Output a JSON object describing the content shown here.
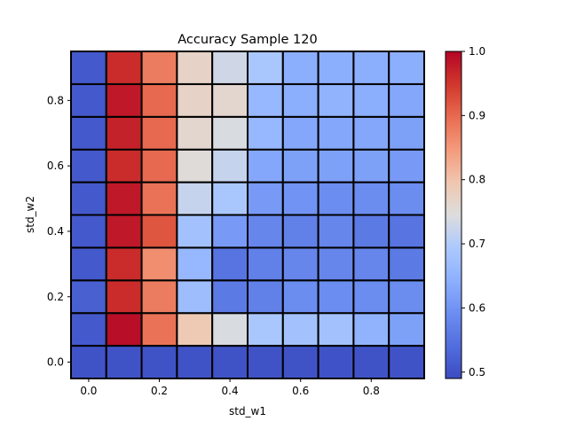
{
  "chart_data": {
    "type": "heatmap",
    "title": "Accuracy Sample 120",
    "xlabel": "std_w1",
    "ylabel": "std_w2",
    "x_values": [
      0.0,
      0.1,
      0.2,
      0.3,
      0.4,
      0.5,
      0.6,
      0.7,
      0.8,
      0.9
    ],
    "y_values": [
      0.0,
      0.1,
      0.2,
      0.3,
      0.4,
      0.5,
      0.6,
      0.7,
      0.8,
      0.9
    ],
    "xlim": [
      -0.05,
      0.95
    ],
    "ylim": [
      -0.05,
      0.95
    ],
    "x_ticks": [
      0.0,
      0.2,
      0.4,
      0.6,
      0.8
    ],
    "x_tick_labels": [
      "0.0",
      "0.2",
      "0.4",
      "0.6",
      "0.8"
    ],
    "y_ticks": [
      0.0,
      0.2,
      0.4,
      0.6,
      0.8
    ],
    "y_tick_labels": [
      "0.0",
      "0.2",
      "0.4",
      "0.6",
      "0.8"
    ],
    "colormap": "coolwarm",
    "colorbar": {
      "min": 0.49,
      "max": 1.0,
      "ticks": [
        0.5,
        0.6,
        0.7,
        0.8,
        0.9,
        1.0
      ],
      "tick_labels": [
        "0.5",
        "0.6",
        "0.7",
        "0.8",
        "0.9",
        "1.0"
      ]
    },
    "cell_edge_color": "#000000",
    "values": [
      [
        0.5,
        0.5,
        0.5,
        0.5,
        0.5,
        0.5,
        0.5,
        0.5,
        0.5,
        0.5
      ],
      [
        0.51,
        0.99,
        0.89,
        0.79,
        0.74,
        0.69,
        0.68,
        0.68,
        0.65,
        0.62
      ],
      [
        0.52,
        0.96,
        0.88,
        0.67,
        0.56,
        0.57,
        0.59,
        0.59,
        0.59,
        0.59
      ],
      [
        0.51,
        0.96,
        0.86,
        0.66,
        0.55,
        0.57,
        0.58,
        0.58,
        0.58,
        0.56
      ],
      [
        0.51,
        0.98,
        0.92,
        0.68,
        0.61,
        0.58,
        0.57,
        0.58,
        0.56,
        0.55
      ],
      [
        0.51,
        0.98,
        0.89,
        0.72,
        0.69,
        0.61,
        0.6,
        0.59,
        0.59,
        0.59
      ],
      [
        0.51,
        0.96,
        0.9,
        0.75,
        0.72,
        0.63,
        0.62,
        0.62,
        0.62,
        0.61
      ],
      [
        0.51,
        0.97,
        0.9,
        0.76,
        0.74,
        0.66,
        0.63,
        0.63,
        0.63,
        0.62
      ],
      [
        0.51,
        0.98,
        0.9,
        0.77,
        0.76,
        0.66,
        0.64,
        0.65,
        0.64,
        0.63
      ],
      [
        0.51,
        0.96,
        0.88,
        0.77,
        0.73,
        0.69,
        0.64,
        0.64,
        0.64,
        0.64
      ]
    ]
  }
}
